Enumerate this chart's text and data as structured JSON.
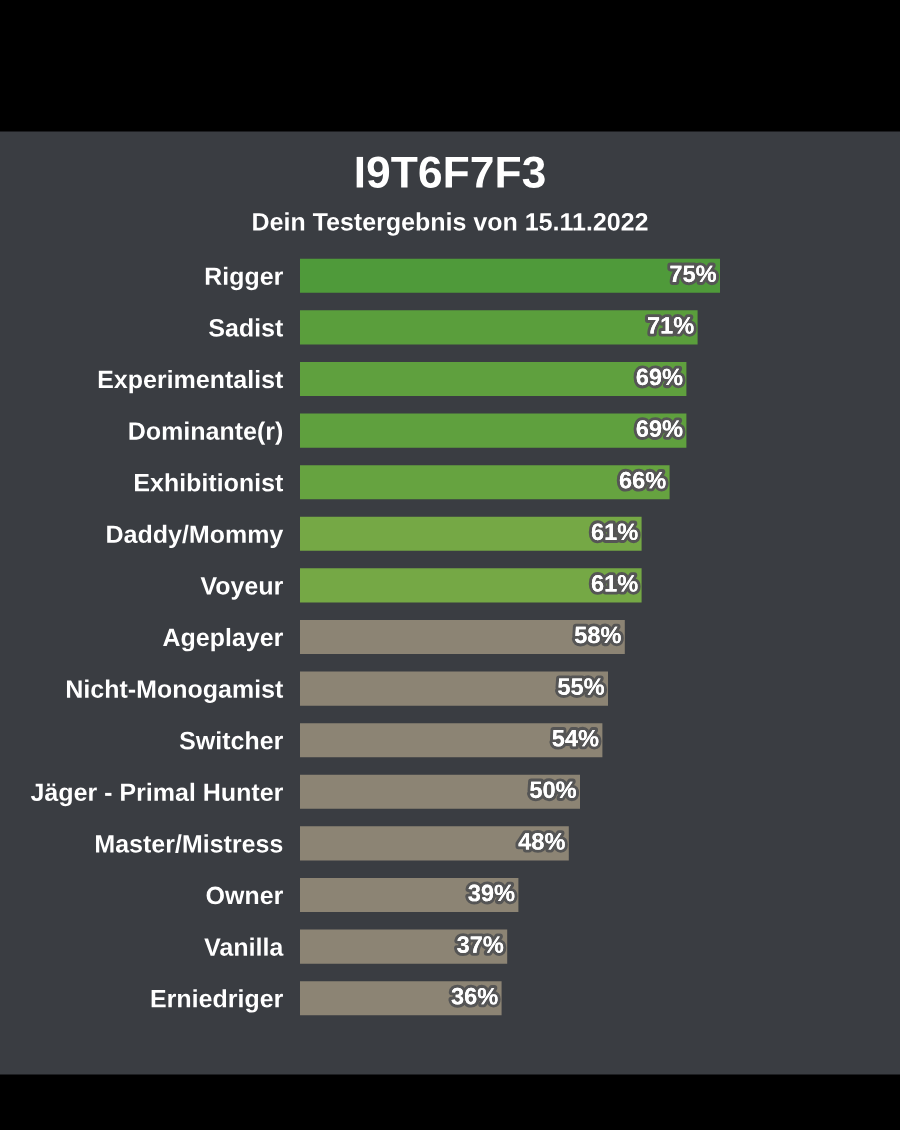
{
  "chart_data": {
    "type": "bar",
    "orientation": "horizontal",
    "title": "I9T6F7F3",
    "subtitle": "Dein Testergebnis von 15.11.2022",
    "categories": [
      "Rigger",
      "Sadist",
      "Experimentalist",
      "Dominante(r)",
      "Exhibitionist",
      "Daddy/Mommy",
      "Voyeur",
      "Ageplayer",
      "Nicht-Monogamist",
      "Switcher",
      "Jäger - Primal Hunter",
      "Master/Mistress",
      "Owner",
      "Vanilla",
      "Erniedriger"
    ],
    "values": [
      75,
      71,
      69,
      69,
      66,
      61,
      61,
      58,
      55,
      54,
      50,
      48,
      39,
      37,
      36
    ],
    "value_labels": [
      "75%",
      "71%",
      "69%",
      "69%",
      "66%",
      "61%",
      "61%",
      "58%",
      "55%",
      "54%",
      "50%",
      "48%",
      "39%",
      "37%",
      "36%"
    ],
    "colors": [
      "#4f9a3a",
      "#5a9e3c",
      "#5fa03e",
      "#5fa03e",
      "#66a340",
      "#75a845",
      "#75a845",
      "#8c8474",
      "#8c8474",
      "#8c8474",
      "#8c8474",
      "#8c8474",
      "#8c8474",
      "#8c8474",
      "#8c8474"
    ],
    "grid": false,
    "legend": false
  }
}
